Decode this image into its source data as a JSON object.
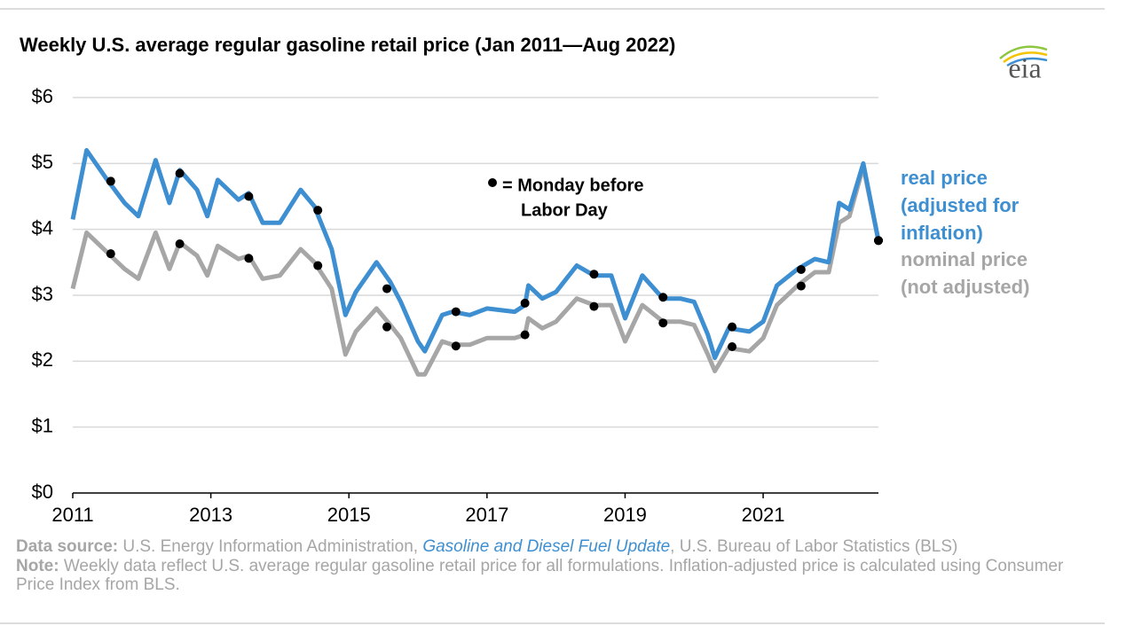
{
  "chart_data": {
    "type": "line",
    "title": "Weekly U.S. average regular gasoline retail price (Jan 2011—Aug 2022)",
    "logo": "eia",
    "x": [
      2011.0,
      2011.2,
      2011.5,
      2011.75,
      2011.95,
      2012.2,
      2012.4,
      2012.55,
      2012.8,
      2012.95,
      2013.1,
      2013.4,
      2013.55,
      2013.75,
      2014.0,
      2014.3,
      2014.5,
      2014.75,
      2014.95,
      2015.1,
      2015.4,
      2015.6,
      2015.75,
      2016.0,
      2016.1,
      2016.35,
      2016.5,
      2016.75,
      2017.0,
      2017.4,
      2017.55,
      2017.6,
      2017.8,
      2018.0,
      2018.3,
      2018.55,
      2018.8,
      2019.0,
      2019.25,
      2019.55,
      2019.8,
      2020.0,
      2020.2,
      2020.3,
      2020.5,
      2020.8,
      2021.0,
      2021.2,
      2021.5,
      2021.75,
      2021.95,
      2022.1,
      2022.25,
      2022.45,
      2022.67
    ],
    "series": [
      {
        "name": "real price (adjusted for inflation)",
        "color": "#3d8fd1",
        "values": [
          4.15,
          5.2,
          4.75,
          4.4,
          4.2,
          5.05,
          4.4,
          4.9,
          4.6,
          4.2,
          4.75,
          4.45,
          4.55,
          4.1,
          4.1,
          4.6,
          4.35,
          3.7,
          2.7,
          3.05,
          3.5,
          3.2,
          2.9,
          2.3,
          2.15,
          2.7,
          2.75,
          2.7,
          2.8,
          2.75,
          2.85,
          3.15,
          2.95,
          3.05,
          3.45,
          3.3,
          3.3,
          2.65,
          3.3,
          2.95,
          2.95,
          2.9,
          2.4,
          2.05,
          2.5,
          2.45,
          2.6,
          3.15,
          3.4,
          3.55,
          3.5,
          4.4,
          4.3,
          5.0,
          3.83
        ]
      },
      {
        "name": "nominal price (not adjusted)",
        "color": "#a6a6a6",
        "values": [
          3.1,
          3.95,
          3.65,
          3.4,
          3.25,
          3.95,
          3.4,
          3.8,
          3.6,
          3.3,
          3.75,
          3.55,
          3.6,
          3.25,
          3.3,
          3.7,
          3.5,
          3.1,
          2.1,
          2.45,
          2.8,
          2.55,
          2.35,
          1.8,
          1.8,
          2.3,
          2.25,
          2.25,
          2.35,
          2.35,
          2.4,
          2.65,
          2.5,
          2.6,
          2.95,
          2.85,
          2.85,
          2.3,
          2.85,
          2.6,
          2.6,
          2.55,
          2.1,
          1.85,
          2.2,
          2.15,
          2.35,
          2.85,
          3.15,
          3.35,
          3.35,
          4.1,
          4.2,
          4.95,
          3.83
        ]
      }
    ],
    "labor_day": {
      "label": [
        "= Monday before",
        "Labor Day"
      ],
      "color": "#000000",
      "x": [
        2011.55,
        2012.55,
        2013.55,
        2014.55,
        2015.55,
        2016.55,
        2017.55,
        2018.55,
        2019.55,
        2020.55,
        2021.55,
        2022.67
      ],
      "real": [
        4.73,
        4.85,
        4.5,
        4.29,
        3.1,
        2.75,
        2.88,
        3.32,
        2.97,
        2.52,
        3.39,
        3.83
      ],
      "nominal": [
        3.63,
        3.78,
        3.56,
        3.45,
        2.52,
        2.23,
        2.4,
        2.83,
        2.58,
        2.22,
        3.14,
        3.83
      ]
    },
    "xlim": [
      2011,
      2022.67
    ],
    "xticks": [
      2011,
      2013,
      2015,
      2017,
      2019,
      2021
    ],
    "ylim": [
      0,
      6
    ],
    "yticks": [
      {
        "value": 0,
        "label": "$0"
      },
      {
        "value": 1,
        "label": "$1"
      },
      {
        "value": 2,
        "label": "$2"
      },
      {
        "value": 3,
        "label": "$3"
      },
      {
        "value": 4,
        "label": "$4"
      },
      {
        "value": 5,
        "label": "$5"
      },
      {
        "value": 6,
        "label": "$6"
      }
    ],
    "grid": true,
    "source": {
      "label": "Data source:",
      "before": " U.S. Energy Information Administration, ",
      "link": "Gasoline and Diesel Fuel Update",
      "after": ", U.S. Bureau of Labor Statistics (BLS)"
    },
    "note": {
      "label": "Note:",
      "text": " Weekly data reflect U.S. average regular gasoline retail price for all formulations. Inflation-adjusted price is calculated using Consumer Price Index from BLS."
    }
  }
}
